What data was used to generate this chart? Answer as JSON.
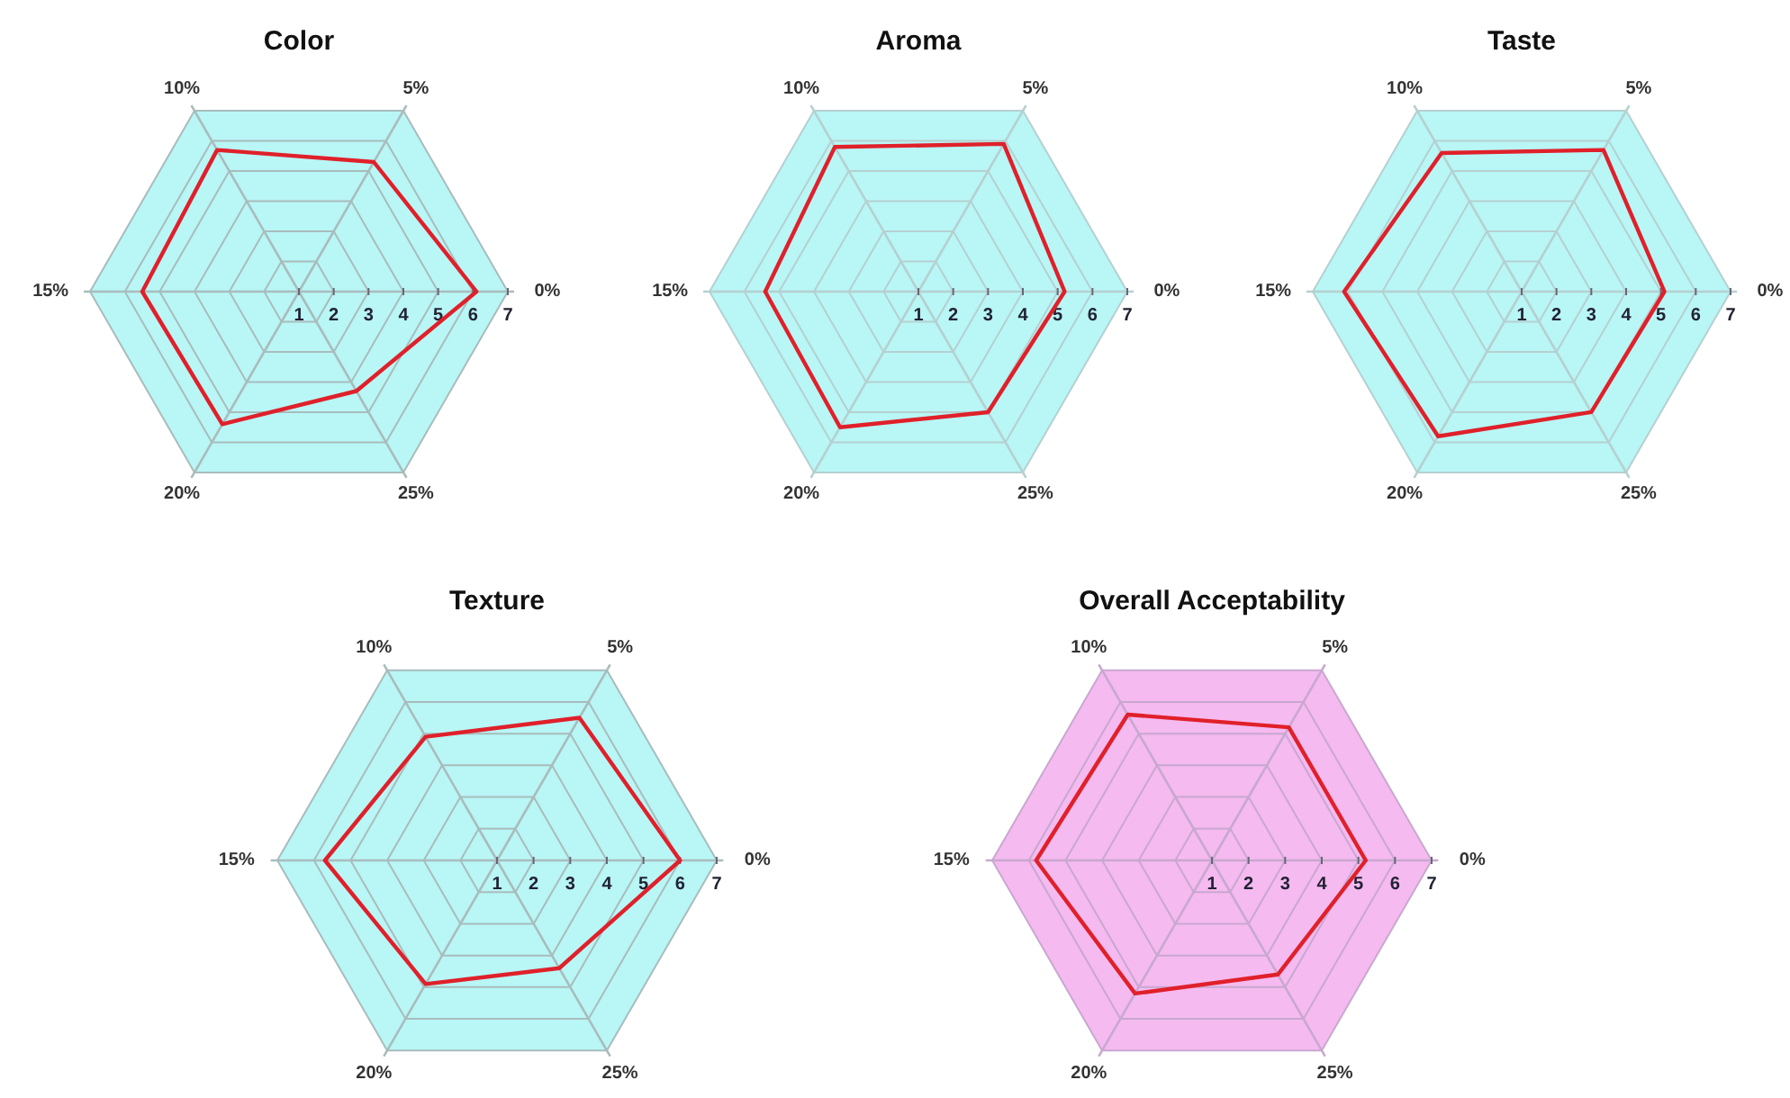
{
  "chart_data": [
    {
      "type": "radar",
      "title": "Color",
      "categories": [
        "5%",
        "0%",
        "25%",
        "20%",
        "15%",
        "10%"
      ],
      "ylim": [
        1,
        7
      ],
      "yticks": [
        1,
        2,
        3,
        4,
        5,
        6,
        7
      ],
      "series": [
        {
          "color": "#e0202a",
          "values": [
            5.3,
            6.1,
            4.3,
            5.4,
            5.5,
            5.7
          ]
        }
      ]
    },
    {
      "type": "radar",
      "title": "Aroma",
      "categories": [
        "5%",
        "0%",
        "25%",
        "20%",
        "15%",
        "10%"
      ],
      "ylim": [
        1,
        7
      ],
      "yticks": [
        1,
        2,
        3,
        4,
        5,
        6,
        7
      ],
      "series": [
        {
          "color": "#e0202a",
          "values": [
            5.9,
            5.2,
            5.0,
            5.5,
            5.4,
            5.8
          ]
        }
      ]
    },
    {
      "type": "radar",
      "title": "Taste",
      "categories": [
        "5%",
        "0%",
        "25%",
        "20%",
        "15%",
        "10%"
      ],
      "ylim": [
        1,
        7
      ],
      "yticks": [
        1,
        2,
        3,
        4,
        5,
        6,
        7
      ],
      "series": [
        {
          "color": "#e0202a",
          "values": [
            5.7,
            5.1,
            5.0,
            5.8,
            6.1,
            5.6
          ]
        }
      ]
    },
    {
      "type": "radar",
      "title": "Texture",
      "categories": [
        "5%",
        "0%",
        "25%",
        "20%",
        "15%",
        "10%"
      ],
      "ylim": [
        1,
        7
      ],
      "yticks": [
        1,
        2,
        3,
        4,
        5,
        6,
        7
      ],
      "series": [
        {
          "color": "#e0202a",
          "values": [
            5.5,
            6.0,
            4.4,
            4.9,
            5.7,
            4.9
          ]
        }
      ]
    },
    {
      "type": "radar",
      "title": "Overall Acceptability",
      "categories": [
        "5%",
        "0%",
        "25%",
        "20%",
        "15%",
        "10%"
      ],
      "ylim": [
        1,
        7
      ],
      "yticks": [
        1,
        2,
        3,
        4,
        5,
        6,
        7
      ],
      "series": [
        {
          "color": "#e0202a",
          "values": [
            5.2,
            5.2,
            4.6,
            5.2,
            5.8,
            5.6
          ]
        }
      ]
    }
  ]
}
